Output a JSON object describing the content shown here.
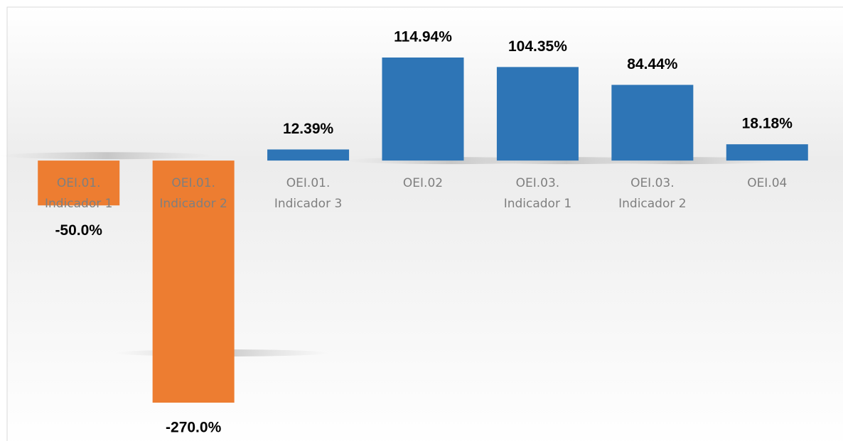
{
  "chart_data": {
    "type": "bar",
    "categories": [
      "OEI.01. Indicador 1",
      "OEI.01. Indicador 2",
      "OEI.01. Indicador 3",
      "OEI.02",
      "OEI.03. Indicador 1",
      "OEI.03. Indicador 2",
      "OEI.04"
    ],
    "values": [
      -50.0,
      -270.0,
      12.39,
      114.94,
      104.35,
      84.44,
      18.18
    ],
    "value_labels": [
      "-50.0%",
      "-270.0%",
      "12.39%",
      "114.94%",
      "104.35%",
      "84.44%",
      "18.18%"
    ],
    "colors": [
      "#ed7d31",
      "#ed7d31",
      "#2e75b6",
      "#2e75b6",
      "#2e75b6",
      "#2e75b6",
      "#2e75b6"
    ],
    "grid": false
  }
}
